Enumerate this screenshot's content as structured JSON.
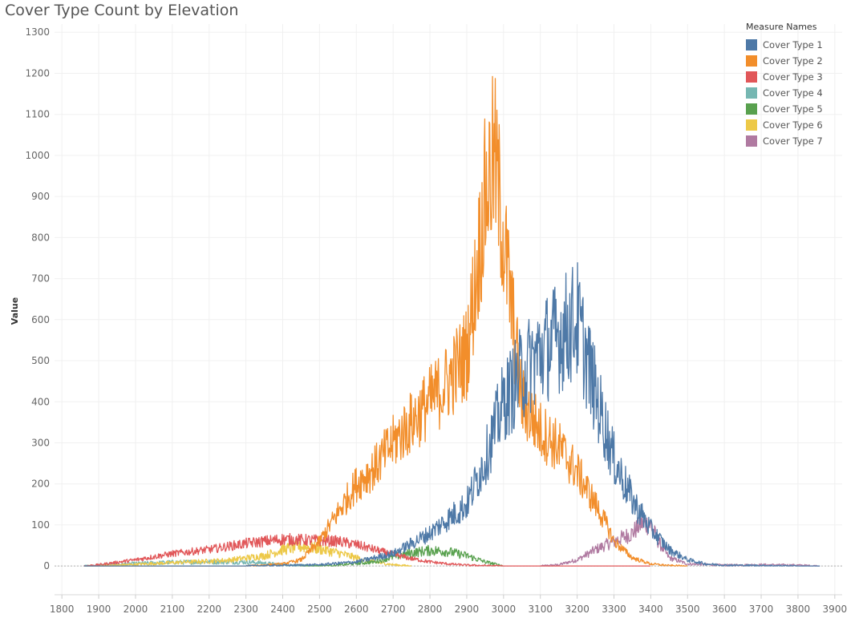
{
  "chart_data": {
    "type": "line",
    "title": "Cover Type Count by Elevation",
    "xlabel": "",
    "ylabel": "Value",
    "xlim": [
      1780,
      3920
    ],
    "ylim": [
      -70,
      1320
    ],
    "x_ticks": [
      1800,
      1900,
      2000,
      2100,
      2200,
      2300,
      2400,
      2500,
      2600,
      2700,
      2800,
      2900,
      3000,
      3100,
      3200,
      3300,
      3400,
      3500,
      3600,
      3700,
      3800,
      3900
    ],
    "y_ticks": [
      0,
      100,
      200,
      300,
      400,
      500,
      600,
      700,
      800,
      900,
      1000,
      1100,
      1200,
      1300
    ],
    "grid": true,
    "legend_title": "Measure Names",
    "legend_position": "top-right",
    "series": [
      {
        "name": "Cover Type 1",
        "color": "#4e79a7",
        "noise": 0.25,
        "x": [
          1860,
          2300,
          2500,
          2600,
          2700,
          2800,
          2900,
          2950,
          3000,
          3050,
          3100,
          3150,
          3200,
          3250,
          3300,
          3350,
          3400,
          3450,
          3500,
          3550,
          3600,
          3700,
          3800,
          3860
        ],
        "y": [
          0,
          0,
          3,
          10,
          30,
          80,
          150,
          260,
          400,
          470,
          520,
          560,
          600,
          420,
          260,
          160,
          90,
          40,
          15,
          5,
          2,
          1,
          0,
          0
        ]
      },
      {
        "name": "Cover Type 2",
        "color": "#f28e2b",
        "noise": 0.22,
        "x": [
          1860,
          2300,
          2400,
          2450,
          2500,
          2550,
          2600,
          2650,
          2700,
          2750,
          2800,
          2850,
          2900,
          2925,
          2950,
          2975,
          3000,
          3025,
          3050,
          3100,
          3150,
          3200,
          3250,
          3280,
          3300,
          3350,
          3400,
          3450,
          3500
        ],
        "y": [
          0,
          0,
          5,
          15,
          60,
          130,
          200,
          240,
          300,
          350,
          400,
          450,
          520,
          700,
          900,
          1000,
          800,
          600,
          400,
          330,
          290,
          230,
          150,
          100,
          60,
          20,
          5,
          1,
          0
        ]
      },
      {
        "name": "Cover Type 3",
        "color": "#e15759",
        "noise": 0.2,
        "x": [
          1860,
          1900,
          2000,
          2100,
          2200,
          2300,
          2400,
          2500,
          2550,
          2600,
          2650,
          2700,
          2750,
          2800,
          2850,
          2900,
          3000,
          3400
        ],
        "y": [
          0,
          3,
          15,
          30,
          40,
          55,
          65,
          62,
          60,
          52,
          40,
          28,
          18,
          10,
          5,
          2,
          0,
          0
        ]
      },
      {
        "name": "Cover Type 4",
        "color": "#76b7b2",
        "noise": 0.4,
        "x": [
          1860,
          1900,
          2000,
          2100,
          2200,
          2300,
          2350,
          2400,
          2500
        ],
        "y": [
          0,
          2,
          6,
          9,
          10,
          10,
          7,
          3,
          0
        ]
      },
      {
        "name": "Cover Type 5",
        "color": "#59a14f",
        "noise": 0.3,
        "x": [
          2450,
          2550,
          2650,
          2700,
          2750,
          2800,
          2850,
          2900,
          2950,
          3000
        ],
        "y": [
          0,
          2,
          10,
          22,
          32,
          38,
          35,
          25,
          10,
          0
        ]
      },
      {
        "name": "Cover Type 6",
        "color": "#edc948",
        "noise": 0.3,
        "x": [
          1870,
          1950,
          2050,
          2150,
          2250,
          2350,
          2400,
          2450,
          2500,
          2550,
          2600,
          2650,
          2700,
          2750
        ],
        "y": [
          0,
          2,
          6,
          10,
          14,
          25,
          40,
          48,
          42,
          32,
          20,
          10,
          3,
          0
        ]
      },
      {
        "name": "Cover Type 7",
        "color": "#b07aa1",
        "noise": 0.25,
        "x": [
          3100,
          3150,
          3200,
          3250,
          3300,
          3350,
          3375,
          3400,
          3420,
          3450,
          3500,
          3600,
          3700,
          3800,
          3860
        ],
        "y": [
          0,
          3,
          15,
          40,
          60,
          80,
          105,
          100,
          60,
          20,
          5,
          2,
          3,
          2,
          0
        ]
      }
    ]
  }
}
